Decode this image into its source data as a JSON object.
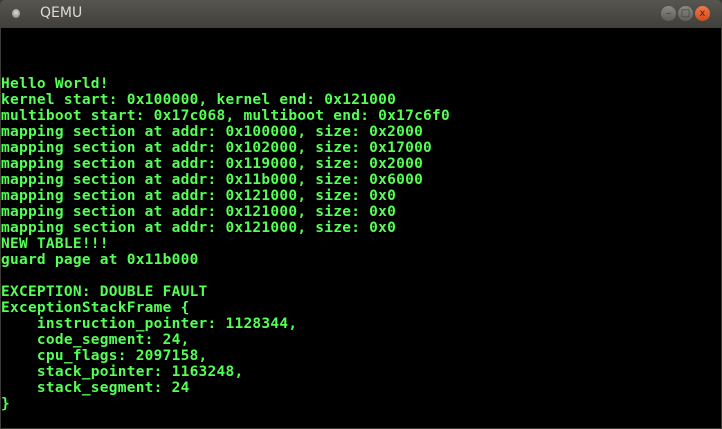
{
  "window": {
    "title": "QEMU",
    "buttons": {
      "minimize": "–",
      "maximize": "□",
      "close": "x"
    }
  },
  "colors": {
    "text": "#55ff55",
    "background": "#000000"
  },
  "console": {
    "lines": [
      "Hello World!",
      "kernel start: 0x100000, kernel end: 0x121000",
      "multiboot start: 0x17c068, multiboot end: 0x17c6f0",
      "mapping section at addr: 0x100000, size: 0x2000",
      "mapping section at addr: 0x102000, size: 0x17000",
      "mapping section at addr: 0x119000, size: 0x2000",
      "mapping section at addr: 0x11b000, size: 0x6000",
      "mapping section at addr: 0x121000, size: 0x0",
      "mapping section at addr: 0x121000, size: 0x0",
      "mapping section at addr: 0x121000, size: 0x0",
      "NEW TABLE!!!",
      "guard page at 0x11b000",
      "",
      "EXCEPTION: DOUBLE FAULT",
      "ExceptionStackFrame {",
      "    instruction_pointer: 1128344,",
      "    code_segment: 24,",
      "    cpu_flags: 2097158,",
      "    stack_pointer: 1163248,",
      "    stack_segment: 24",
      "}"
    ]
  }
}
